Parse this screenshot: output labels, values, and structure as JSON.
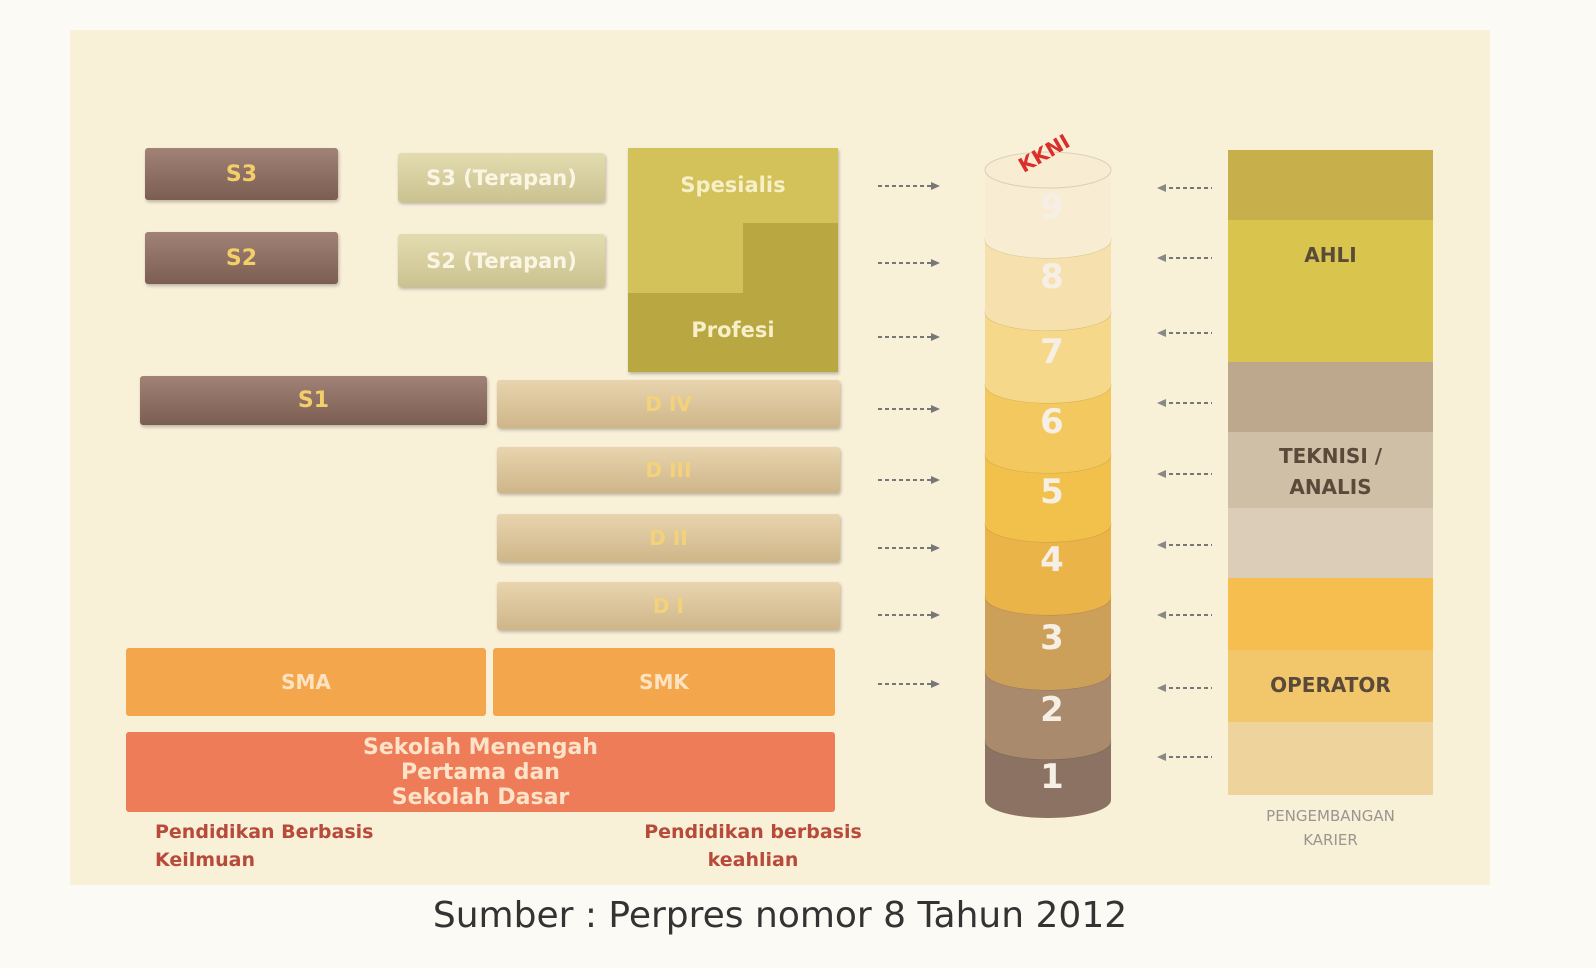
{
  "education": {
    "academic": [
      "S3",
      "S2",
      "S1"
    ],
    "applied": [
      "S3 (Terapan)",
      "S2 (Terapan)"
    ],
    "professional": [
      "Spesialis",
      "Profesi"
    ],
    "vocational": [
      "D IV",
      "D III",
      "D II",
      "D I"
    ],
    "secondary": [
      "SMA",
      "SMK"
    ],
    "basic": "Sekolah Menengah Pertama dan Sekolah Dasar",
    "streams": [
      "Pendidikan Berbasis Keilmuan",
      "Pendidikan berbasis keahlian"
    ]
  },
  "kkni": {
    "label": "KKNI",
    "levels": [
      "1",
      "2",
      "3",
      "4",
      "5",
      "6",
      "7",
      "8",
      "9"
    ]
  },
  "career": {
    "groups": [
      "AHLI",
      "TEKNISI / ANALIS",
      "OPERATOR"
    ],
    "label": "PENGEMBANGAN KARIER"
  },
  "source": "Sumber : Perpres nomor 8 Tahun 2012"
}
